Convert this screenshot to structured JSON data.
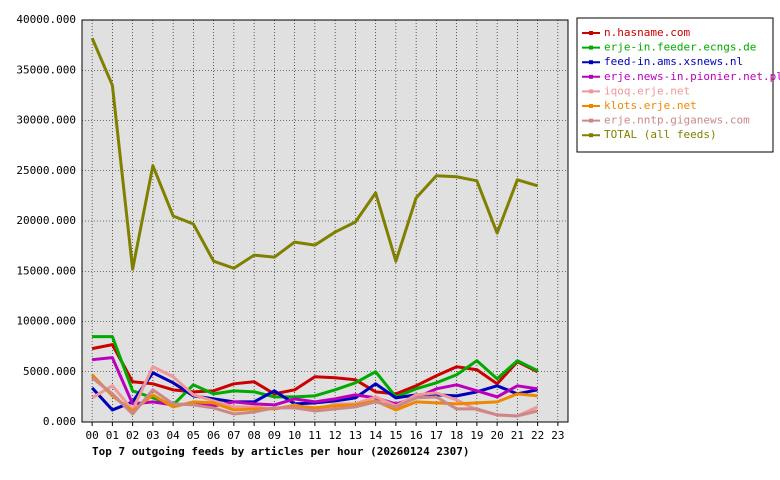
{
  "chart_data": {
    "type": "line",
    "title": "Top 7 outgoing feeds by articles per hour (20260124 2307)",
    "categories": [
      "00",
      "01",
      "02",
      "03",
      "04",
      "05",
      "06",
      "07",
      "08",
      "09",
      "10",
      "11",
      "12",
      "13",
      "14",
      "15",
      "16",
      "17",
      "18",
      "19",
      "20",
      "21",
      "22",
      "23"
    ],
    "ylim": [
      0,
      40000
    ],
    "yticks": [
      {
        "value": 0,
        "label": "0.000"
      },
      {
        "value": 5000,
        "label": "5000.000"
      },
      {
        "value": 10000,
        "label": "10000.000"
      },
      {
        "value": 15000,
        "label": "15000.000"
      },
      {
        "value": 20000,
        "label": "20000.000"
      },
      {
        "value": 25000,
        "label": "25000.000"
      },
      {
        "value": 30000,
        "label": "30000.000"
      },
      {
        "value": 35000,
        "label": "35000.000"
      },
      {
        "value": 40000,
        "label": "40000.000"
      }
    ],
    "grid": true,
    "legend": "right",
    "series": [
      {
        "name": "n.hasname.com",
        "color": "#cc0000",
        "values": [
          7300,
          7700,
          4000,
          3800,
          3200,
          3000,
          3100,
          3800,
          4000,
          2800,
          3200,
          4500,
          4400,
          4200,
          3000,
          2800,
          3600,
          4600,
          5500,
          5200,
          3800,
          6000,
          5000,
          null
        ]
      },
      {
        "name": "erje-in.feeder.ecngs.de",
        "color": "#00aa00",
        "values": [
          8500,
          8500,
          3100,
          2400,
          1700,
          3700,
          2800,
          3100,
          3000,
          2500,
          2500,
          2600,
          3200,
          3900,
          5000,
          2500,
          3300,
          3900,
          4700,
          6100,
          4300,
          6100,
          5100,
          null
        ]
      },
      {
        "name": "feed-in.ams.xsnews.nl",
        "color": "#0000bb",
        "values": [
          3400,
          1200,
          2000,
          4900,
          3900,
          2600,
          2300,
          2000,
          2000,
          3100,
          1800,
          1900,
          2100,
          2400,
          3800,
          2400,
          2700,
          2700,
          2600,
          3000,
          3600,
          2800,
          3200,
          null
        ]
      },
      {
        "name": "erje.news-in.pionier.net.pl",
        "color": "#bb00bb",
        "values": [
          6200,
          6400,
          1800,
          2000,
          1700,
          1800,
          1600,
          2000,
          1800,
          1700,
          2300,
          2000,
          2300,
          2700,
          2400,
          1800,
          2400,
          3300,
          3700,
          3100,
          2500,
          3600,
          3300,
          null
        ]
      },
      {
        "name": "iqoq.erje.net",
        "color": "#ee9999",
        "values": [
          2400,
          3600,
          1200,
          5500,
          4500,
          2700,
          2100,
          1500,
          1500,
          1300,
          1700,
          1200,
          1800,
          1800,
          2500,
          1600,
          2700,
          2900,
          2200,
          1200,
          700,
          600,
          1500,
          null
        ]
      },
      {
        "name": "klots.erje.net",
        "color": "#ee8800",
        "values": [
          4700,
          2600,
          1100,
          2700,
          1500,
          2000,
          1900,
          1200,
          1300,
          1300,
          1600,
          1400,
          1600,
          1700,
          2100,
          1200,
          2000,
          1900,
          1800,
          1900,
          2000,
          2800,
          2600,
          null
        ]
      },
      {
        "name": "erje.nntp.giganews.com",
        "color": "#cc8888",
        "values": [
          4400,
          2800,
          800,
          3200,
          1800,
          1700,
          1400,
          800,
          1000,
          1400,
          1400,
          1100,
          1300,
          1500,
          2000,
          1500,
          2400,
          2500,
          1300,
          1300,
          700,
          600,
          1100,
          null
        ]
      },
      {
        "name": "TOTAL (all feeds)",
        "color": "#808000",
        "values": [
          38200,
          33500,
          15200,
          25500,
          20500,
          19700,
          16000,
          15300,
          16600,
          16400,
          17900,
          17600,
          18900,
          19900,
          22800,
          16000,
          22300,
          24500,
          24400,
          24000,
          18800,
          24100,
          23500,
          null
        ]
      }
    ]
  }
}
